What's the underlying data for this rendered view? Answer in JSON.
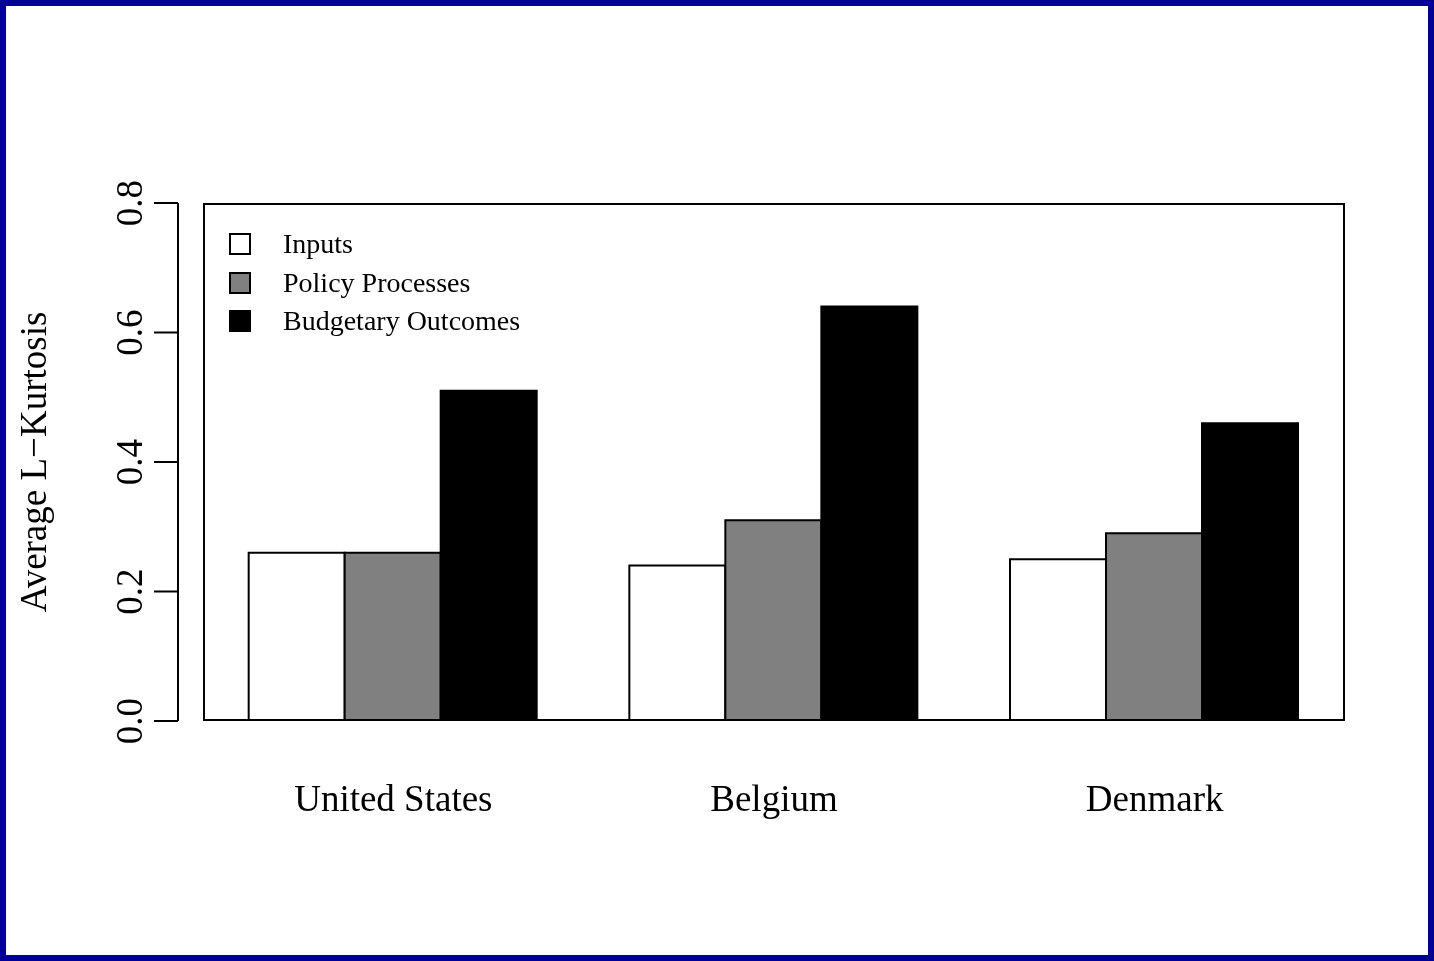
{
  "chart_data": {
    "type": "bar",
    "ylabel": "Average L−Kurtosis",
    "categories": [
      "United States",
      "Belgium",
      "Denmark"
    ],
    "series": [
      {
        "name": "Inputs",
        "color": "#ffffff",
        "values": [
          0.26,
          0.24,
          0.25
        ]
      },
      {
        "name": "Policy Processes",
        "color": "#808080",
        "values": [
          0.26,
          0.31,
          0.29
        ]
      },
      {
        "name": "Budgetary Outcomes",
        "color": "#000000",
        "values": [
          0.51,
          0.64,
          0.46
        ]
      }
    ],
    "ylim": [
      0,
      0.8
    ],
    "yticks": [
      {
        "value": 0,
        "label": "0.0"
      },
      {
        "value": 0.2,
        "label": "0.2"
      },
      {
        "value": 0.4,
        "label": "0.4"
      },
      {
        "value": 0.6,
        "label": "0.6"
      },
      {
        "value": 0.8,
        "label": "0.8"
      }
    ],
    "legend": "top left",
    "grid": false
  }
}
